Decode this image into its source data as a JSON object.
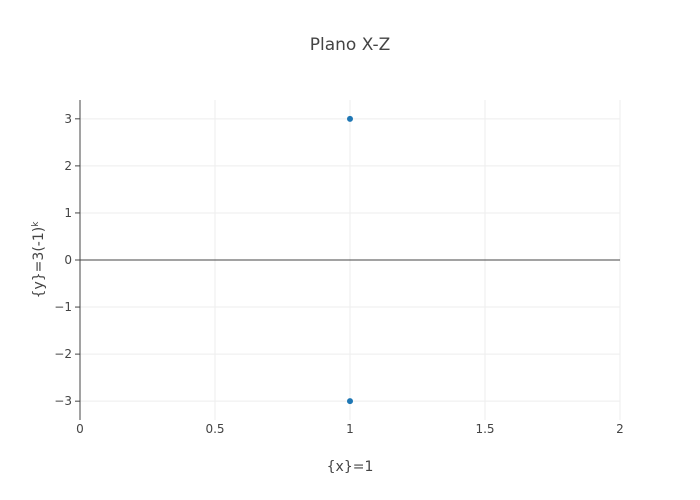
{
  "chart_data": {
    "type": "scatter",
    "title": "Plano X-Z",
    "xlabel": "{x}=1",
    "ylabel": {
      "base": "{y}=3(-1)",
      "superscript": "k"
    },
    "xlim": [
      0,
      2
    ],
    "ylim": [
      -3.4,
      3.4
    ],
    "x_ticks": [
      0,
      0.5,
      1,
      1.5,
      2
    ],
    "x_tick_labels": [
      "0",
      "0.5",
      "1",
      "1.5",
      "2"
    ],
    "y_ticks": [
      3,
      2,
      1,
      0,
      -1,
      -2,
      -3
    ],
    "y_tick_labels": [
      "3",
      "2",
      "1",
      "0",
      "−1",
      "−2",
      "−3"
    ],
    "grid": true,
    "series": [
      {
        "x": [
          1,
          1
        ],
        "y": [
          3,
          -3
        ],
        "color": "#1f77b4"
      }
    ]
  }
}
